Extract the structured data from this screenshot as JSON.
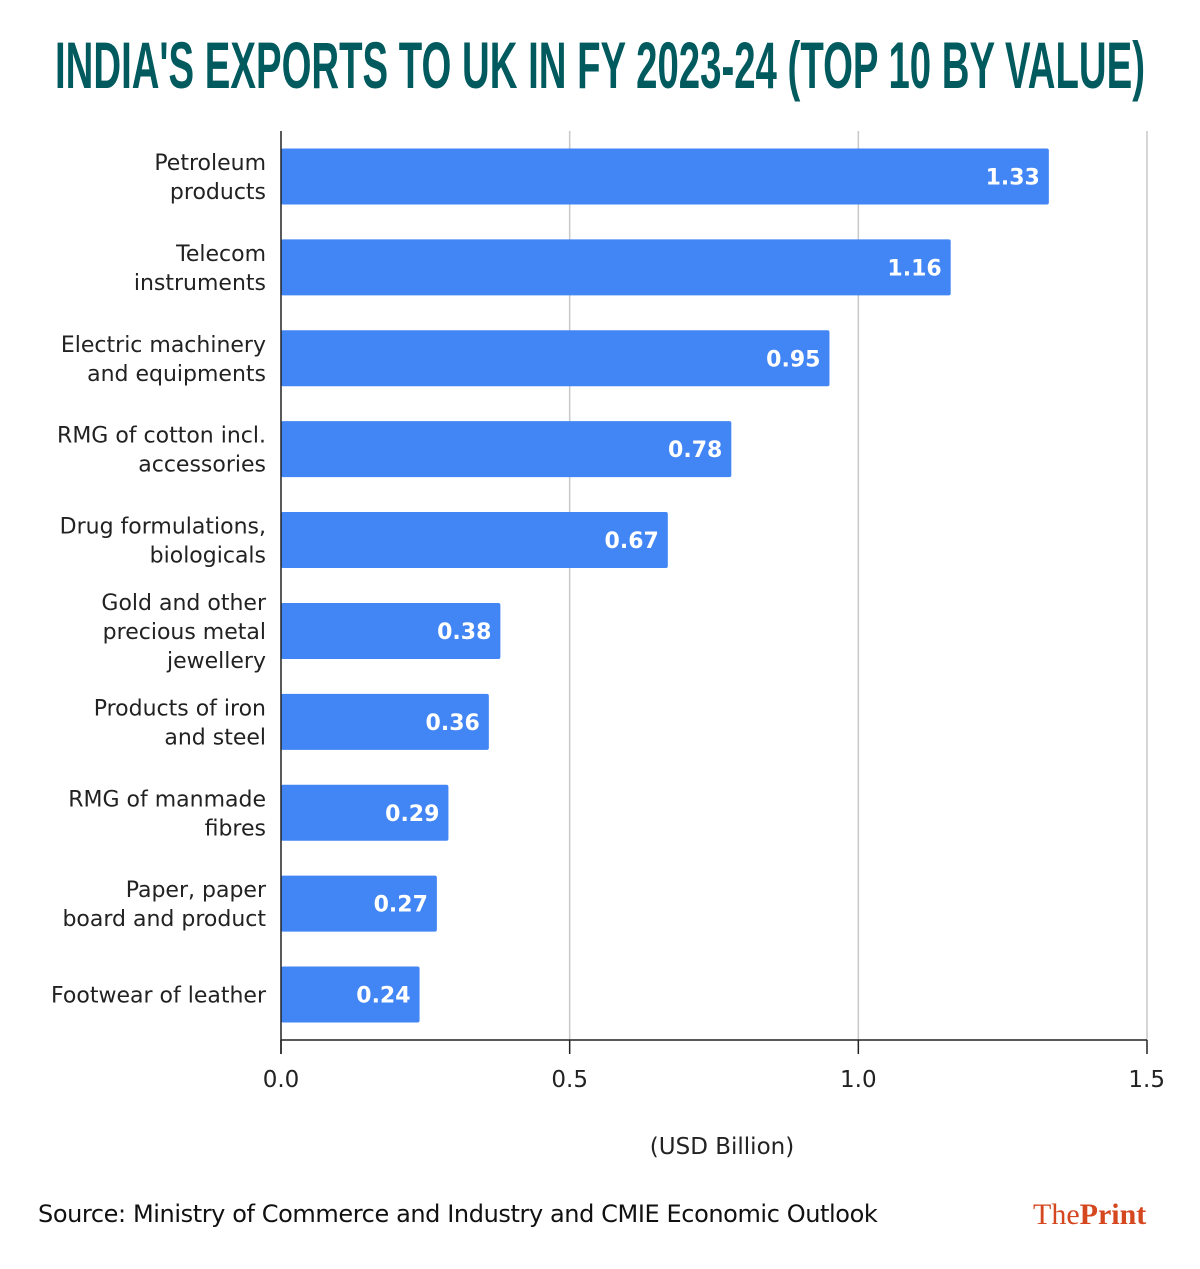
{
  "title": "INDIA'S EXPORTS TO UK IN FY 2023-24 (TOP 10 BY VALUE)",
  "source": "Source: Ministry of Commerce and Industry and CMIE Economic Outlook",
  "logo": {
    "part1": "The",
    "part2": "Print"
  },
  "colors": {
    "bar": "#4285f4",
    "title": "#005a5e",
    "logo": "#d5471f"
  },
  "chart_data": {
    "type": "bar",
    "orientation": "horizontal",
    "categories": [
      [
        "Petroleum",
        "products"
      ],
      [
        "Telecom",
        "instruments"
      ],
      [
        "Electric machinery",
        "and equipments"
      ],
      [
        "RMG of cotton incl.",
        "accessories"
      ],
      [
        "Drug formulations,",
        "biologicals"
      ],
      [
        "Gold and other",
        "precious metal",
        "jewellery"
      ],
      [
        "Products of iron",
        "and steel"
      ],
      [
        "RMG of manmade",
        "fibres"
      ],
      [
        "Paper, paper",
        "board and product"
      ],
      [
        "Footwear of leather"
      ]
    ],
    "values": [
      1.33,
      1.16,
      0.95,
      0.78,
      0.67,
      0.38,
      0.36,
      0.29,
      0.27,
      0.24
    ],
    "data_labels": [
      "1.33",
      "1.16",
      "0.95",
      "0.78",
      "0.67",
      "0.38",
      "0.36",
      "0.29",
      "0.27",
      "0.24"
    ],
    "xlabel": "(USD Billion)",
    "xlim": [
      0,
      1.5
    ],
    "xticks": [
      0,
      0.5,
      1.0,
      1.5
    ],
    "xtick_labels": [
      "0.0",
      "0.5",
      "1.0",
      "1.5"
    ],
    "grid": true,
    "legend": "none"
  }
}
